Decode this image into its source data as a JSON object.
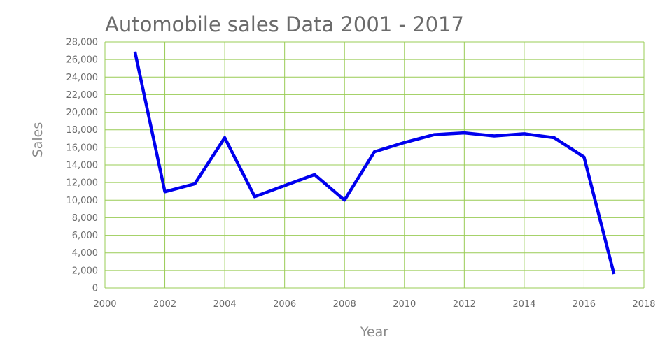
{
  "colors": {
    "line": "#0000ee",
    "grid": "#99cc55",
    "text": "#6b6b6b",
    "background": "#ffffff"
  },
  "chart_data": {
    "type": "line",
    "title": "Automobile sales Data 2001 - 2017",
    "xlabel": "Year",
    "ylabel": "Sales",
    "xlim": [
      2000,
      2018
    ],
    "ylim": [
      0,
      28000
    ],
    "x_ticks": [
      "2000",
      "2002",
      "2004",
      "2006",
      "2008",
      "2010",
      "2012",
      "2014",
      "2016",
      "2018"
    ],
    "y_ticks": [
      "0",
      "2,000",
      "4,000",
      "6,000",
      "8,000",
      "10,000",
      "12,000",
      "14,000",
      "16,000",
      "18,000",
      "20,000",
      "22,000",
      "24,000",
      "26,000",
      "28,000"
    ],
    "grid": true,
    "legend": "none",
    "series": [
      {
        "x": [
          2001,
          2002,
          2003,
          2004,
          2005,
          2006,
          2007,
          2008,
          2009,
          2010,
          2011,
          2012,
          2013,
          2014,
          2015,
          2016,
          2017
        ],
        "values": [
          26900,
          10950,
          11850,
          17100,
          10400,
          11650,
          12900,
          10000,
          15500,
          16550,
          17450,
          17650,
          17300,
          17550,
          17100,
          14900,
          1600
        ]
      }
    ]
  }
}
